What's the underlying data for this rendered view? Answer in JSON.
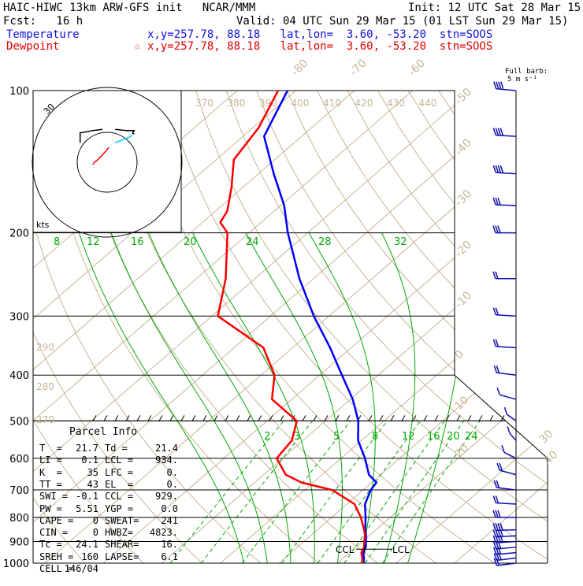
{
  "header": {
    "line1_left": "HAIC-HIWC 13km ARW-GFS init   NCAR/MMM",
    "line1_right": "Init: 12 UTC Sat 28 Mar 15",
    "fcst": "Fcst:   16 h",
    "valid": "Valid: 04 UTC Sun 29 Mar 15 (01 LST Sun 29 Mar 15)",
    "temp_label": "Temperature",
    "temp_info": "x,y=257.78, 88.18   lat,lon=  3.60, -53.20  stn=SOOS",
    "dew_label": "Dewpoint",
    "dew_info": "x,y=257.78, 88.18   lat,lon=  3.60, -53.20  stn=SOOS",
    "dew_marker": "☆"
  },
  "barb_legend": {
    "line1": "Full barb:",
    "line2": "5 m s⁻¹"
  },
  "hodograph": {
    "units": "kts",
    "ring_label": "30"
  },
  "parcel_info": {
    "title": "Parcel Info",
    "rows": [
      [
        "T  =",
        "21.7",
        "Td =",
        "21.4"
      ],
      [
        "LI =",
        "0.1",
        "LCL =",
        "934."
      ],
      [
        "K  =",
        "35",
        "LFC =",
        "0."
      ],
      [
        "TT =",
        "43",
        "EL  =",
        "0."
      ],
      [
        "SWI =",
        "-0.1",
        "CCL =",
        "929."
      ],
      [
        "PW =",
        "5.51",
        "YGP =",
        "0.0"
      ],
      [
        "CAPE =",
        "0",
        "SWEAT=",
        "241"
      ],
      [
        "CIN =",
        "0",
        "HWBZ=",
        "4823."
      ],
      [
        "Tc =",
        "24.1",
        "SHEAR=",
        "16."
      ],
      [
        "SREH =",
        "160",
        "LAPSE=",
        "6.1"
      ],
      [
        "CELL =",
        "146/04",
        "",
        ""
      ]
    ]
  },
  "ccl_label": "CCL",
  "lcl_label": "LCL",
  "colors": {
    "temperature": "#0000ff",
    "dewpoint": "#ff0000",
    "dry_adiabat": "#c8b496",
    "isotherm": "#c8b496",
    "moist_adiabat": "#00aa00",
    "mixing_ratio": "#00aa00",
    "isobar": "#000000"
  },
  "chart_data": {
    "type": "line",
    "diagram": "skew-T log-p",
    "pressure_levels": [
      100,
      200,
      300,
      400,
      500,
      600,
      700,
      800,
      900,
      1000
    ],
    "pressure_tick_labels": [
      "100",
      "200",
      "300",
      "400",
      "500",
      "600",
      "700",
      "800",
      "900",
      "1000"
    ],
    "isotherm_labels": [
      "-80",
      "-70",
      "-60",
      "-50",
      "-40",
      "-30",
      "-20",
      "-10",
      "0",
      "10",
      "20",
      "30",
      "40"
    ],
    "isotherm_values": [
      -80,
      -70,
      -60,
      -50,
      -40,
      -30,
      -20,
      -10,
      0,
      10,
      20,
      30,
      40
    ],
    "theta_labels": [
      "370",
      "380",
      "390",
      "400",
      "410",
      "420",
      "430",
      "440"
    ],
    "theta_left_labels": [
      "290",
      "280",
      "270"
    ],
    "mixing_ratio_upper_labels": [
      "8",
      "12",
      "16",
      "20",
      "24",
      "28",
      "32"
    ],
    "mixing_ratio_lower_labels": [
      "2",
      "3",
      "5",
      "8",
      "12",
      "16",
      "20",
      "24"
    ],
    "series": [
      {
        "name": "Temperature",
        "color": "#0000ff",
        "p": [
          1000,
          975,
          950,
          925,
          900,
          875,
          850,
          800,
          750,
          700,
          675,
          650,
          600,
          550,
          500,
          450,
          400,
          350,
          300,
          250,
          200,
          175,
          150,
          125,
          100
        ],
        "t": [
          24.5,
          23.5,
          22.3,
          21.7,
          20.6,
          19.5,
          18.2,
          15.8,
          13.1,
          11.3,
          10.8,
          8.0,
          4.1,
          -0.6,
          -4.4,
          -9.6,
          -16.2,
          -23.6,
          -32.6,
          -42.4,
          -53.4,
          -59.4,
          -67.4,
          -76.4,
          -81.4
        ]
      },
      {
        "name": "Dewpoint",
        "color": "#ff0000",
        "p": [
          1000,
          975,
          950,
          925,
          900,
          875,
          850,
          800,
          750,
          700,
          675,
          650,
          600,
          550,
          500,
          450,
          400,
          350,
          300,
          250,
          200,
          190,
          180,
          160,
          140,
          120,
          100
        ],
        "t": [
          24.3,
          23.2,
          22.0,
          21.4,
          20.3,
          19.3,
          18.0,
          15.0,
          11.3,
          4.7,
          -2.0,
          -6.2,
          -11.0,
          -11.9,
          -14.9,
          -23.4,
          -27.7,
          -35.0,
          -49.0,
          -55.0,
          -63.7,
          -67.0,
          -68.0,
          -72.0,
          -77.0,
          -79.0,
          -83.0
        ]
      }
    ],
    "wind_barbs": {
      "p": [
        1000,
        975,
        950,
        925,
        900,
        875,
        850,
        800,
        750,
        700,
        650,
        600,
        550,
        500,
        450,
        400,
        350,
        300,
        250,
        200,
        175,
        150,
        125,
        100
      ],
      "speed_ms": [
        5,
        7,
        7,
        8,
        9,
        9,
        9,
        8,
        6,
        5,
        4,
        3,
        3,
        2,
        3,
        4,
        5,
        5,
        6,
        8,
        8,
        9,
        9,
        9
      ],
      "dir_deg": [
        70,
        70,
        75,
        75,
        80,
        80,
        85,
        90,
        100,
        110,
        130,
        150,
        170,
        200,
        230,
        250,
        260,
        260,
        270,
        270,
        265,
        260,
        260,
        255
      ]
    },
    "hodograph": {
      "u_kts": [
        -9,
        -8,
        -6,
        -3,
        -1,
        1,
        5,
        9,
        13,
        16,
        17,
        16,
        17,
        12,
        5,
        -3,
        -9,
        -13,
        -17,
        -17,
        -17
      ],
      "v_kts": [
        -2,
        0,
        2,
        6,
        9,
        12,
        16,
        18,
        20,
        22,
        23,
        24,
        26,
        26,
        27,
        27,
        26,
        25,
        24,
        20,
        16
      ]
    },
    "ylim": [
      1000,
      100
    ],
    "xlim_temperature_at_1000": [
      -32,
      40
    ],
    "grid": true
  }
}
